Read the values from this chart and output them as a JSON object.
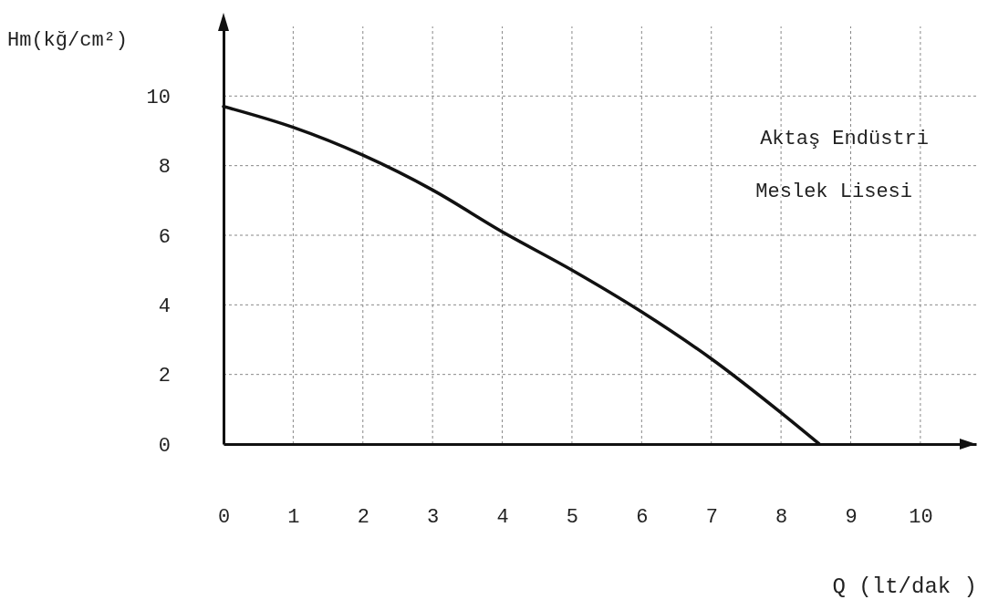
{
  "chart_data": {
    "type": "line",
    "xlabel": "Q (lt/dak )",
    "ylabel": "Hm(kğ/cm²)",
    "annotations": [
      "Aktaş Endüstri",
      "Meslek Lisesi"
    ],
    "x": [
      0,
      1,
      2,
      3,
      4,
      5,
      6,
      7,
      8,
      8.55
    ],
    "series": [
      {
        "color": "#111111",
        "values": [
          9.7,
          9.1,
          8.3,
          7.3,
          6.1,
          5.0,
          3.8,
          2.45,
          0.9,
          0
        ]
      }
    ],
    "xlim": [
      0,
      10.8
    ],
    "xticks": [
      0,
      1,
      2,
      3,
      4,
      5,
      6,
      7,
      8,
      9,
      10
    ],
    "ylim": [
      0,
      12
    ],
    "yticks": [
      0,
      2,
      4,
      6,
      8,
      10
    ],
    "grid": true,
    "marker": "none",
    "line_style": "solid"
  }
}
